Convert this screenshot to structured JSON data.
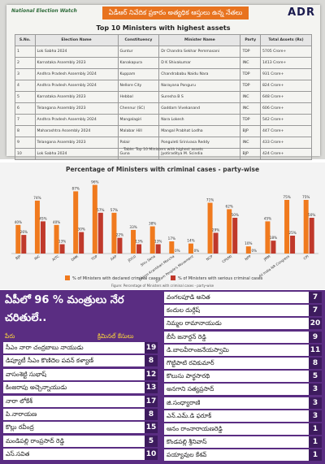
{
  "header": {
    "logo": "National Election Watch",
    "banner": "ఏడీఆర్ నివేదిక ప్రకారం అత్యధిక ఆస్తులు ఉన్న నేతలు",
    "org": "ADR"
  },
  "assets_table": {
    "title": "Top 10 Ministers with highest assets",
    "columns": [
      "S.No.",
      "Election Name",
      "Constituency",
      "Minister Name",
      "Party",
      "Total Assets (Rs)"
    ],
    "rows": [
      [
        1,
        "Lok Sabha 2024",
        "Guntur",
        "Dr Chandra Sekhar Pemmasani",
        "TDP",
        "5705 Crore+"
      ],
      [
        2,
        "Karnataka Assembly 2023",
        "Kanakapura",
        "D K Shivakumar",
        "INC",
        "1413 Crore+"
      ],
      [
        3,
        "Andhra Pradesh Assembly 2024",
        "Kuppam",
        "Chandrababu Naidu Nara",
        "TDP",
        "931 Crore+"
      ],
      [
        4,
        "Andhra Pradesh Assembly 2024",
        "Nellore City",
        "Narayana Ponguru",
        "TDP",
        "824 Crore+"
      ],
      [
        5,
        "Karnataka Assembly 2023",
        "Hebbal",
        "Suresha B S",
        "INC",
        "648 Crore+"
      ],
      [
        6,
        "Telangana Assembly 2023",
        "Chennur (SC)",
        "Gaddam Vivekanand",
        "INC",
        "606 Crore+"
      ],
      [
        7,
        "Andhra Pradesh Assembly 2024",
        "Mangalagiri",
        "Nara Lokesh",
        "TDP",
        "542 Crore+"
      ],
      [
        8,
        "Maharashtra Assembly 2024",
        "Malabar Hill",
        "Mangal Prabhat Lodha",
        "BJP",
        "447 Crore+"
      ],
      [
        9,
        "Telangana Assembly 2023",
        "Palair",
        "Ponguleti Srinivasa Reddy",
        "INC",
        "433 Crore+"
      ],
      [
        10,
        "Lok Sabha 2024",
        "Guna",
        "Jyotiraditya M. Scindia",
        "BJP",
        "424 Crore+"
      ]
    ],
    "note": "Table: Top 10 Ministers with highest assets"
  },
  "chart_data": {
    "type": "bar",
    "title": "Percentage of Ministers with criminal cases - party-wise",
    "categories": [
      "BJP",
      "INC",
      "AITC",
      "DMK",
      "TDP",
      "AAP",
      "JD(U)",
      "Shiv Sena",
      "Sikkim Krantikari Morcha",
      "Zoram People's Movement",
      "NCP",
      "CPI(M)",
      "NPP",
      "JMM",
      "All India NR Congress",
      "CPI"
    ],
    "series": [
      {
        "name": "% of Ministers with declared criminal cases",
        "color": "#f07a1e",
        "values": [
          40,
          74,
          40,
          87,
          96,
          57,
          33,
          38,
          17,
          14,
          71,
          62,
          10,
          45,
          75,
          75
        ],
        "value_labels": [
          "40%",
          "74%",
          "40%",
          "87%",
          "96%",
          "57%",
          "33%",
          "38%",
          "17%",
          "14%",
          "71%",
          "62%",
          "10%",
          "45%",
          "75%",
          "75%"
        ]
      },
      {
        "name": "% of Ministers with serious criminal cases",
        "color": "#c0392b",
        "values": [
          26,
          45,
          13,
          30,
          57,
          22,
          13,
          13,
          0,
          0,
          29,
          50,
          0,
          18,
          25,
          50
        ],
        "value_labels": [
          "26%",
          "45%",
          "13%",
          "30%",
          "57%",
          "22%",
          "13%",
          "13%",
          "0%",
          "0%",
          "29%",
          "50%",
          "0%",
          "18%",
          "25%",
          "50%"
        ]
      }
    ],
    "note": "Figure: Percentage of Ministers with criminal cases - party-wise"
  },
  "criminal_cases": {
    "title": "ఏపీలో 96 % మంత్రులు నేర చరితులే..",
    "name_header": "పేరు",
    "count_header": "క్రిమినల్ కేసులు",
    "left": [
      [
        "సీఎం నారా చంద్రబాబు నాయుడు",
        19
      ],
      [
        "డిప్యూటీ సీఎం కొణిదెల పవన్ కళ్యాణ్",
        8
      ],
      [
        "వాసంశెట్టి సుభాష్",
        12
      ],
      [
        "కింజరాపు అచ్చెన్నాయుడు",
        13
      ],
      [
        "నారా లోకేశ్",
        17
      ],
      [
        "పి.నారాయణ",
        8
      ],
      [
        "కొల్లు రవీంద్ర",
        15
      ],
      [
        "మండిపల్లి రాంప్రసాద్ రెడ్డి",
        5
      ],
      [
        "ఎస్.సవిత",
        10
      ]
    ],
    "right": [
      [
        "వంగలపూడి అనిత",
        7
      ],
      [
        "కందుల దుర్గేష్",
        7
      ],
      [
        "నిమ్మల రామానాయుడు",
        20
      ],
      [
        "బీసీ జనార్దన్ రెడ్డి",
        9
      ],
      [
        "డి.బాలవీరాంజనేయస్వామి",
        11
      ],
      [
        "గొట్టిపాటి రవికుమార్",
        8
      ],
      [
        "కొలుసు పార్థసారథి",
        5
      ],
      [
        "అనగాని సత్యప్రసాద్",
        3
      ],
      [
        "జి.సంధ్యారాణి",
        3
      ],
      [
        "ఎన్.ఎమ్.డి ఫరూక్",
        3
      ],
      [
        "ఆనం రాంనారాయణరెడ్డి",
        1
      ],
      [
        "కొండపల్లి శ్రీనివాస్",
        1
      ],
      [
        "పయ్యావుల కేశవ్",
        1
      ]
    ]
  }
}
